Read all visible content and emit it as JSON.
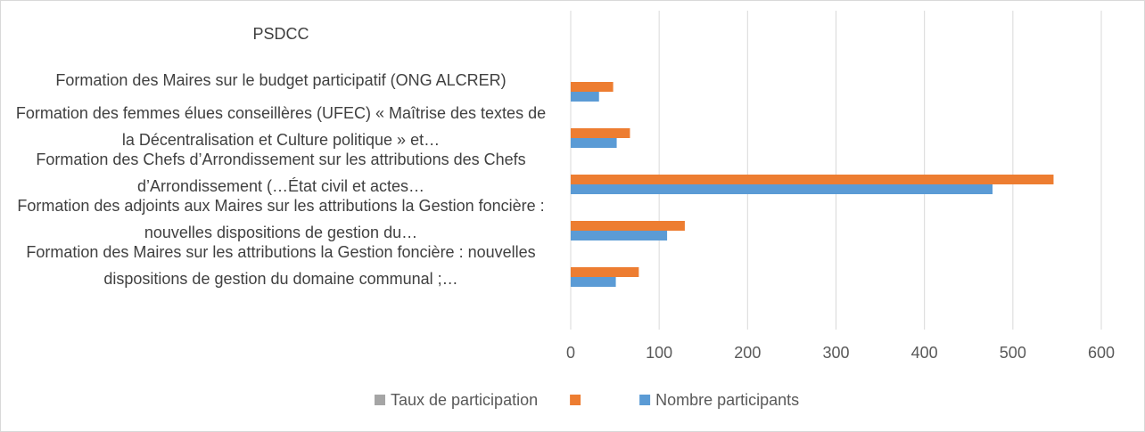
{
  "chart_data": {
    "type": "bar",
    "orientation": "horizontal",
    "categories": [
      "PSDCC",
      "Formation des Maires sur le budget participatif (ONG ALCRER)",
      "Formation des femmes élues conseillères (UFEC)  « Maîtrise des textes de la Décentralisation et Culture politique » et…",
      "Formation des Chefs d’Arrondissement sur les attributions des Chefs d’Arrondissement (…État civil et actes…",
      "Formation des adjoints aux Maires sur les attributions la Gestion foncière : nouvelles dispositions de gestion du…",
      "Formation des Maires sur les attributions la Gestion foncière : nouvelles dispositions de gestion du domaine communal ;…"
    ],
    "series": [
      {
        "name": "Taux de participation",
        "color": "#a5a5a5",
        "values": [
          null,
          null,
          null,
          null,
          null,
          null
        ]
      },
      {
        "color": "#ed7d31",
        "values": [
          null,
          48,
          67,
          546,
          129,
          77
        ]
      },
      {
        "name": "Nombre participants",
        "color": "#5b9bd5",
        "values": [
          null,
          32,
          52,
          477,
          109,
          51
        ]
      }
    ],
    "xlim": [
      0,
      600
    ],
    "xticks": [
      0,
      100,
      200,
      300,
      400,
      500,
      600
    ],
    "grid": true,
    "legend": "bottom"
  }
}
